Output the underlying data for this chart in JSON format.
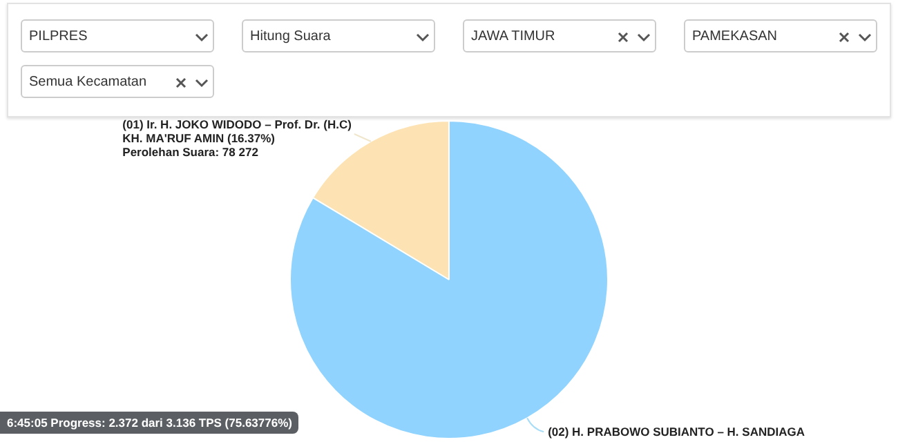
{
  "chart_data": {
    "type": "pie",
    "categories": [
      "(01) Ir. H. JOKO WIDODO – Prof. Dr. (H.C) KH. MA'RUF AMIN",
      "(02) H. PRABOWO SUBIANTO – H. SANDIAGA"
    ],
    "values": [
      16.37,
      83.63
    ],
    "colors": [
      "#fde3b3",
      "#8fd3fe"
    ],
    "value_labels": [
      "(16.37%)",
      null
    ],
    "legend": false,
    "annotations": [
      "PILPRES",
      "Hitung Suara",
      "JAWA TIMUR",
      "PAMEKASAN",
      "Semua Kecamatan",
      "Perolehan Suara: 78 272",
      "6:45:05 Progress: 2.372 dari 3.136 TPS (75.63776%)"
    ]
  }
}
